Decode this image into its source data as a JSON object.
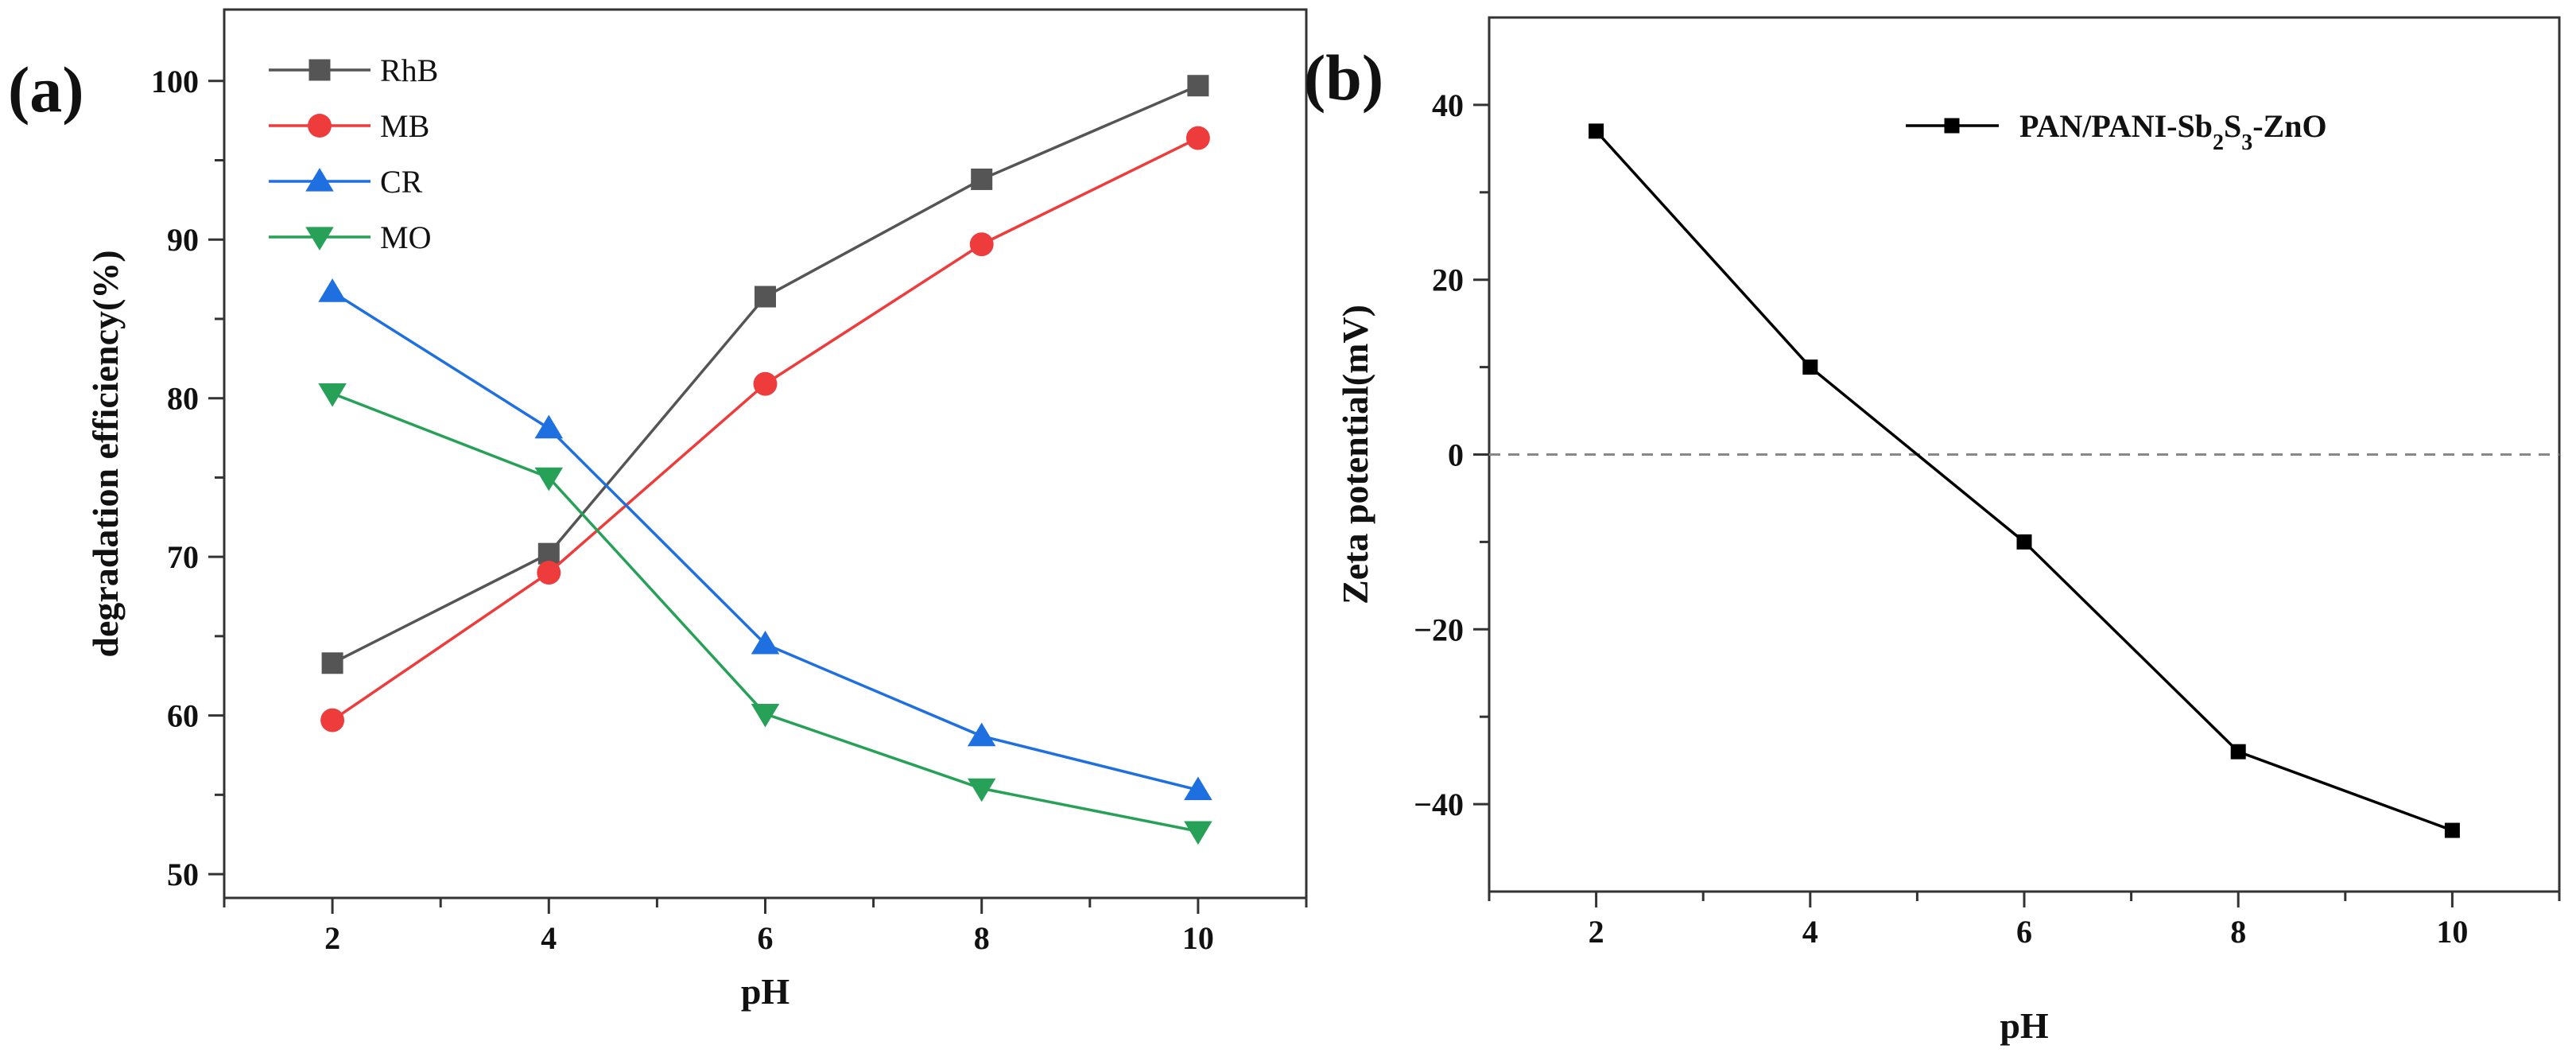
{
  "chart_data": [
    {
      "type": "line",
      "panel_label": "(a)",
      "title": "",
      "xlabel": "pH",
      "ylabel": "degradation efficiency(%)",
      "x": [
        2,
        4,
        6,
        8,
        10
      ],
      "xticks": [
        2,
        4,
        6,
        8,
        10
      ],
      "xlim": [
        1,
        11
      ],
      "yticks": [
        50,
        60,
        70,
        80,
        90,
        100
      ],
      "ylim": [
        48.5,
        104.5
      ],
      "grid": false,
      "legend_position": "top-left",
      "series": [
        {
          "name": "RhB",
          "marker": "square",
          "color": "#555555",
          "values": [
            63.3,
            70.2,
            86.4,
            93.8,
            99.7
          ]
        },
        {
          "name": "MB",
          "marker": "circle",
          "color": "#ee3b3b",
          "values": [
            59.7,
            69.0,
            80.9,
            89.7,
            96.4
          ]
        },
        {
          "name": "CR",
          "marker": "triangle-up",
          "color": "#1e6fe0",
          "values": [
            86.7,
            78.1,
            64.5,
            58.7,
            55.3
          ]
        },
        {
          "name": "MO",
          "marker": "triangle-down",
          "color": "#27a157",
          "values": [
            80.3,
            75.0,
            60.1,
            55.4,
            52.7
          ]
        }
      ]
    },
    {
      "type": "line",
      "panel_label": "(b)",
      "title": "",
      "xlabel": "pH",
      "ylabel": "Zeta potential(mV)",
      "x": [
        2,
        4,
        6,
        8,
        10
      ],
      "xticks": [
        2,
        4,
        6,
        8,
        10
      ],
      "xlim": [
        1,
        11
      ],
      "yticks": [
        -40,
        -20,
        0,
        20,
        40
      ],
      "ylim": [
        -50,
        50
      ],
      "grid": false,
      "reference_line": {
        "y": 0,
        "style": "dashed",
        "color": "#888888"
      },
      "legend_position": "top-right",
      "series": [
        {
          "name": "PAN/PANI-Sb2S3-ZnO",
          "name_parts": {
            "a": "PAN/PANI-Sb",
            "b": "2",
            "c": "S",
            "d": "3",
            "e": "-ZnO"
          },
          "marker": "square",
          "color": "#000000",
          "values": [
            37,
            10,
            -10,
            -34,
            -43
          ]
        }
      ]
    }
  ]
}
